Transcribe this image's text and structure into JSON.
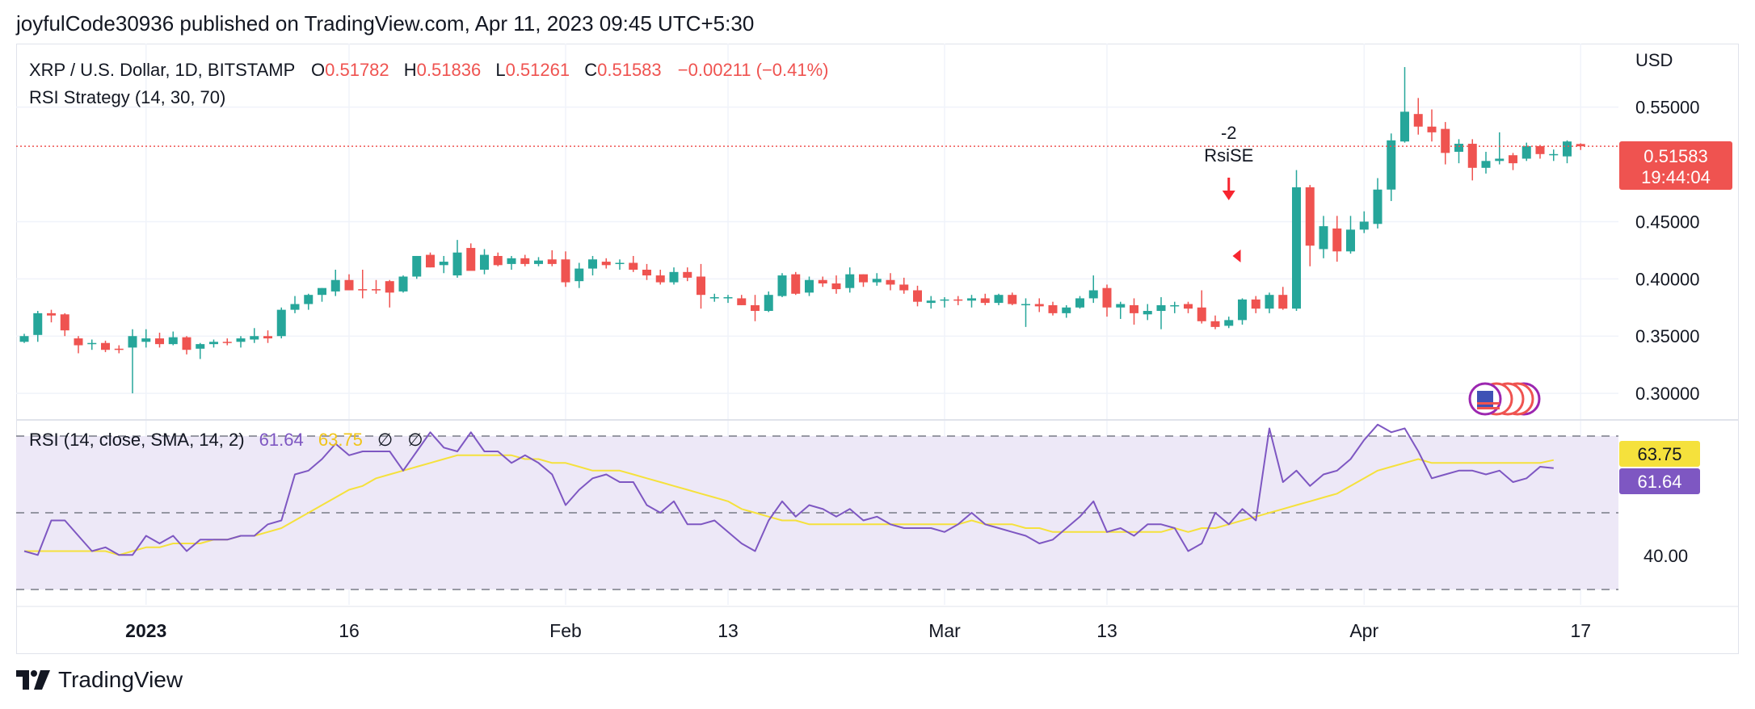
{
  "header": {
    "published": "joyfulCode30936 published on TradingView.com, Apr 11, 2023 09:45 UTC+5:30"
  },
  "footer": {
    "brand": "TradingView"
  },
  "colors": {
    "up": "#26a69a",
    "down": "#ef5350",
    "rsi": "#7e57c2",
    "sma": "#f5e13c",
    "grid": "#f0f3fa",
    "band": "#ede8f7"
  },
  "chart_data": {
    "type": "candlestick",
    "symbol_line": {
      "symbol": "XRP / U.S. Dollar, 1D, BITSTAMP",
      "open_label": "O",
      "open": "0.51782",
      "high_label": "H",
      "high": "0.51836",
      "low_label": "L",
      "low": "0.51261",
      "close_label": "C",
      "close": "0.51583",
      "change": "−0.00211 (−0.41%)"
    },
    "strategy": "RSI Strategy (14, 30, 70)",
    "currency": "USD",
    "y_ticks": [
      "0.55000",
      "0.45000",
      "0.40000",
      "0.35000",
      "0.30000"
    ],
    "y_range": [
      0.2775,
      0.6055
    ],
    "last_price": {
      "value": 0.51583,
      "label": "0.51583",
      "countdown": "19:44:04"
    },
    "x_ticks": [
      {
        "label": "2023",
        "index": 9,
        "bold": true
      },
      {
        "label": "16",
        "index": 24,
        "bold": false
      },
      {
        "label": "Feb",
        "index": 40,
        "bold": false
      },
      {
        "label": "13",
        "index": 52,
        "bold": false
      },
      {
        "label": "Mar",
        "index": 68,
        "bold": false
      },
      {
        "label": "13",
        "index": 80,
        "bold": false
      },
      {
        "label": "Apr",
        "index": 99,
        "bold": false
      },
      {
        "label": "17",
        "index": 115,
        "bold": false
      }
    ],
    "signal": {
      "index": 89,
      "qty": "-2",
      "name": "RsiSE"
    },
    "candles": [
      [
        0.345,
        0.352,
        0.344,
        0.35
      ],
      [
        0.351,
        0.372,
        0.345,
        0.37
      ],
      [
        0.37,
        0.373,
        0.362,
        0.368
      ],
      [
        0.369,
        0.37,
        0.35,
        0.355
      ],
      [
        0.348,
        0.35,
        0.335,
        0.342
      ],
      [
        0.343,
        0.347,
        0.338,
        0.344
      ],
      [
        0.344,
        0.346,
        0.336,
        0.338
      ],
      [
        0.339,
        0.342,
        0.335,
        0.338
      ],
      [
        0.34,
        0.356,
        0.3,
        0.35
      ],
      [
        0.345,
        0.356,
        0.34,
        0.348
      ],
      [
        0.348,
        0.353,
        0.34,
        0.343
      ],
      [
        0.343,
        0.354,
        0.342,
        0.349
      ],
      [
        0.349,
        0.35,
        0.334,
        0.338
      ],
      [
        0.339,
        0.344,
        0.33,
        0.343
      ],
      [
        0.343,
        0.347,
        0.34,
        0.345
      ],
      [
        0.345,
        0.348,
        0.342,
        0.344
      ],
      [
        0.345,
        0.35,
        0.34,
        0.348
      ],
      [
        0.347,
        0.357,
        0.344,
        0.35
      ],
      [
        0.35,
        0.355,
        0.344,
        0.348
      ],
      [
        0.35,
        0.375,
        0.348,
        0.373
      ],
      [
        0.373,
        0.385,
        0.37,
        0.378
      ],
      [
        0.378,
        0.387,
        0.373,
        0.386
      ],
      [
        0.386,
        0.392,
        0.38,
        0.392
      ],
      [
        0.389,
        0.408,
        0.385,
        0.399
      ],
      [
        0.399,
        0.404,
        0.39,
        0.39
      ],
      [
        0.391,
        0.408,
        0.383,
        0.39
      ],
      [
        0.391,
        0.399,
        0.387,
        0.39
      ],
      [
        0.398,
        0.399,
        0.375,
        0.388
      ],
      [
        0.389,
        0.403,
        0.388,
        0.402
      ],
      [
        0.402,
        0.42,
        0.4,
        0.42
      ],
      [
        0.421,
        0.423,
        0.41,
        0.41
      ],
      [
        0.412,
        0.42,
        0.405,
        0.415
      ],
      [
        0.403,
        0.434,
        0.401,
        0.423
      ],
      [
        0.427,
        0.431,
        0.408,
        0.407
      ],
      [
        0.408,
        0.426,
        0.404,
        0.421
      ],
      [
        0.42,
        0.423,
        0.411,
        0.412
      ],
      [
        0.413,
        0.42,
        0.408,
        0.418
      ],
      [
        0.418,
        0.421,
        0.411,
        0.413
      ],
      [
        0.413,
        0.419,
        0.411,
        0.416
      ],
      [
        0.417,
        0.425,
        0.411,
        0.413
      ],
      [
        0.417,
        0.424,
        0.393,
        0.397
      ],
      [
        0.398,
        0.414,
        0.392,
        0.409
      ],
      [
        0.409,
        0.42,
        0.403,
        0.417
      ],
      [
        0.415,
        0.418,
        0.409,
        0.412
      ],
      [
        0.413,
        0.417,
        0.408,
        0.414
      ],
      [
        0.414,
        0.42,
        0.406,
        0.408
      ],
      [
        0.408,
        0.413,
        0.399,
        0.403
      ],
      [
        0.403,
        0.408,
        0.395,
        0.397
      ],
      [
        0.397,
        0.41,
        0.395,
        0.406
      ],
      [
        0.406,
        0.41,
        0.398,
        0.401
      ],
      [
        0.402,
        0.413,
        0.374,
        0.386
      ],
      [
        0.384,
        0.387,
        0.38,
        0.384
      ],
      [
        0.384,
        0.386,
        0.379,
        0.384
      ],
      [
        0.383,
        0.386,
        0.377,
        0.377
      ],
      [
        0.377,
        0.386,
        0.363,
        0.372
      ],
      [
        0.372,
        0.389,
        0.371,
        0.386
      ],
      [
        0.385,
        0.405,
        0.384,
        0.403
      ],
      [
        0.404,
        0.406,
        0.386,
        0.387
      ],
      [
        0.388,
        0.402,
        0.385,
        0.399
      ],
      [
        0.399,
        0.402,
        0.393,
        0.396
      ],
      [
        0.396,
        0.403,
        0.387,
        0.391
      ],
      [
        0.392,
        0.41,
        0.388,
        0.404
      ],
      [
        0.404,
        0.404,
        0.393,
        0.397
      ],
      [
        0.397,
        0.405,
        0.394,
        0.4
      ],
      [
        0.399,
        0.405,
        0.39,
        0.395
      ],
      [
        0.395,
        0.401,
        0.387,
        0.39
      ],
      [
        0.39,
        0.394,
        0.376,
        0.38
      ],
      [
        0.379,
        0.385,
        0.374,
        0.381
      ],
      [
        0.381,
        0.384,
        0.375,
        0.382
      ],
      [
        0.382,
        0.385,
        0.377,
        0.381
      ],
      [
        0.381,
        0.386,
        0.375,
        0.383
      ],
      [
        0.383,
        0.387,
        0.377,
        0.379
      ],
      [
        0.379,
        0.387,
        0.377,
        0.386
      ],
      [
        0.386,
        0.388,
        0.377,
        0.378
      ],
      [
        0.378,
        0.383,
        0.358,
        0.378
      ],
      [
        0.378,
        0.383,
        0.371,
        0.376
      ],
      [
        0.377,
        0.38,
        0.368,
        0.37
      ],
      [
        0.37,
        0.377,
        0.366,
        0.375
      ],
      [
        0.375,
        0.385,
        0.374,
        0.383
      ],
      [
        0.383,
        0.403,
        0.379,
        0.39
      ],
      [
        0.392,
        0.395,
        0.367,
        0.375
      ],
      [
        0.375,
        0.38,
        0.365,
        0.378
      ],
      [
        0.377,
        0.383,
        0.36,
        0.37
      ],
      [
        0.369,
        0.378,
        0.364,
        0.372
      ],
      [
        0.372,
        0.384,
        0.356,
        0.377
      ],
      [
        0.377,
        0.38,
        0.37,
        0.377
      ],
      [
        0.378,
        0.38,
        0.37,
        0.374
      ],
      [
        0.375,
        0.39,
        0.361,
        0.363
      ],
      [
        0.363,
        0.368,
        0.356,
        0.358
      ],
      [
        0.359,
        0.367,
        0.357,
        0.364
      ],
      [
        0.364,
        0.383,
        0.36,
        0.382
      ],
      [
        0.382,
        0.385,
        0.37,
        0.374
      ],
      [
        0.374,
        0.388,
        0.37,
        0.386
      ],
      [
        0.386,
        0.393,
        0.373,
        0.374
      ],
      [
        0.374,
        0.495,
        0.372,
        0.48
      ],
      [
        0.48,
        0.482,
        0.411,
        0.429
      ],
      [
        0.426,
        0.455,
        0.418,
        0.446
      ],
      [
        0.444,
        0.455,
        0.415,
        0.424
      ],
      [
        0.424,
        0.455,
        0.422,
        0.443
      ],
      [
        0.443,
        0.459,
        0.44,
        0.45
      ],
      [
        0.448,
        0.488,
        0.444,
        0.478
      ],
      [
        0.478,
        0.527,
        0.468,
        0.521
      ],
      [
        0.52,
        0.585,
        0.519,
        0.546
      ],
      [
        0.544,
        0.558,
        0.526,
        0.533
      ],
      [
        0.533,
        0.548,
        0.52,
        0.528
      ],
      [
        0.531,
        0.537,
        0.5,
        0.51
      ],
      [
        0.511,
        0.522,
        0.501,
        0.518
      ],
      [
        0.518,
        0.522,
        0.486,
        0.497
      ],
      [
        0.497,
        0.511,
        0.492,
        0.503
      ],
      [
        0.503,
        0.528,
        0.5,
        0.505
      ],
      [
        0.508,
        0.51,
        0.495,
        0.501
      ],
      [
        0.505,
        0.519,
        0.503,
        0.516
      ],
      [
        0.516,
        0.517,
        0.505,
        0.509
      ],
      [
        0.509,
        0.513,
        0.503,
        0.509
      ],
      [
        0.507,
        0.521,
        0.501,
        0.52
      ],
      [
        0.5178,
        0.5184,
        0.5126,
        0.5158
      ]
    ],
    "rsi": {
      "title": "RSI (14, close, SMA, 14, 2)",
      "rsi_value": "61.64",
      "sma_value": "63.75",
      "extra": [
        "∅",
        "∅"
      ],
      "tick_label": "40.00",
      "y_range": [
        26,
        74
      ],
      "levels": [
        70,
        50,
        30
      ],
      "rsi": [
        40,
        39,
        48,
        48,
        44,
        40,
        41,
        39,
        39,
        44,
        42,
        44,
        40,
        43,
        43,
        43,
        44,
        44,
        47,
        48,
        60,
        61,
        64,
        68,
        65,
        66,
        66,
        66,
        61,
        66,
        71,
        67,
        66,
        71,
        66,
        66,
        63,
        65,
        63,
        60,
        52,
        56,
        59,
        60,
        58,
        58,
        52,
        50,
        53,
        47,
        47,
        48,
        45,
        42,
        40,
        48,
        53,
        49,
        52,
        51,
        49,
        51,
        48,
        49,
        47,
        46,
        46,
        46,
        45,
        47,
        50,
        47,
        46,
        45,
        44,
        42,
        43,
        46,
        49,
        53,
        45,
        46,
        44,
        47,
        47,
        46,
        40,
        42,
        50,
        47,
        51,
        48,
        72,
        58,
        61,
        57,
        60,
        61,
        64,
        69,
        73,
        71,
        72,
        66,
        59,
        60,
        61,
        61,
        60,
        61,
        58,
        59,
        62,
        61.64
      ],
      "sma": [
        40,
        40,
        40,
        40,
        40,
        40,
        40,
        39,
        40,
        41,
        41,
        42,
        42,
        42,
        43,
        43,
        44,
        44,
        45,
        46,
        48,
        50,
        52,
        54,
        56,
        57,
        59,
        60,
        61,
        62,
        63,
        64,
        65,
        65,
        65,
        65,
        65,
        64,
        64,
        63,
        63,
        62,
        61,
        61,
        61,
        60,
        59,
        58,
        57,
        56,
        55,
        54,
        53,
        51,
        50,
        49,
        48,
        48,
        47,
        47,
        47,
        47,
        47,
        47,
        47,
        47,
        47,
        47,
        47,
        47,
        48,
        47,
        47,
        47,
        46,
        46,
        45,
        45,
        45,
        45,
        45,
        45,
        45,
        45,
        45,
        46,
        45,
        46,
        46,
        47,
        48,
        49,
        50,
        51,
        52,
        53,
        54,
        55,
        57,
        59,
        61,
        62,
        63,
        64,
        63,
        63,
        63,
        63,
        63,
        63,
        63,
        63,
        63,
        63.75
      ]
    }
  }
}
